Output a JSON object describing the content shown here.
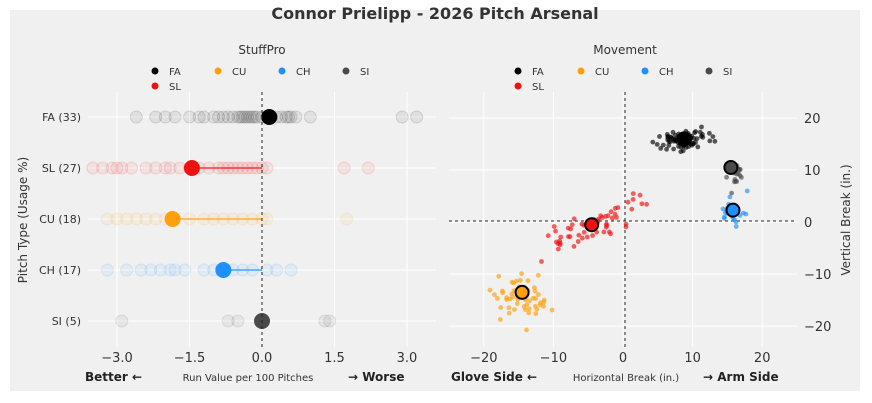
{
  "title": "Connor Prielipp - 2026 Pitch Arsenal",
  "chart_data": [
    {
      "type": "scatter",
      "subtitle": "StuffPro",
      "ylabel": "Pitch Type (Usage %)",
      "xlabel": "Run Value per 100 Pitches",
      "xlabel_left": "Better ←",
      "xlabel_right": "→ Worse",
      "xlim": [
        -3.6,
        3.6
      ],
      "xticks": [
        -3.0,
        -1.5,
        0.0,
        1.5,
        3.0
      ],
      "xtick_labels": [
        "−3.0",
        "−1.5",
        "0.0",
        "1.5",
        "3.0"
      ],
      "categories": [
        "FA (33)",
        "SL (27)",
        "CU (18)",
        "CH (17)",
        "SI (5)"
      ],
      "legend": [
        {
          "code": "FA",
          "color": "#000000"
        },
        {
          "code": "CU",
          "color": "#ff9f0a"
        },
        {
          "code": "CH",
          "color": "#1e90ff"
        },
        {
          "code": "SI",
          "color": "#4a4a4a"
        },
        {
          "code": "SL",
          "color": "#ef1010"
        }
      ],
      "series": [
        {
          "pitch": "FA",
          "color": "#000000",
          "mean": 0.15,
          "values": [
            -2.6,
            -2.2,
            -2.0,
            -1.8,
            -1.5,
            -1.3,
            -1.2,
            -1.0,
            -0.9,
            -0.8,
            -0.7,
            -0.6,
            -0.5,
            -0.45,
            -0.4,
            -0.35,
            -0.3,
            -0.25,
            -0.2,
            -0.15,
            -0.1,
            0.0,
            0.1,
            0.2,
            0.3,
            0.4,
            0.5,
            0.55,
            0.6,
            0.7,
            1.0,
            2.9,
            3.2
          ]
        },
        {
          "pitch": "SL",
          "color": "#ef1010",
          "mean": -1.45,
          "values": [
            -3.5,
            -3.3,
            -3.1,
            -3.0,
            -2.9,
            -2.7,
            -2.4,
            -2.2,
            -2.0,
            -1.9,
            -1.7,
            -1.5,
            -1.3,
            -1.1,
            -0.9,
            -0.8,
            -0.7,
            -0.6,
            -0.5,
            -0.4,
            -0.3,
            -0.2,
            -0.1,
            0.0,
            0.1,
            1.7,
            2.2
          ]
        },
        {
          "pitch": "CU",
          "color": "#ff9f0a",
          "mean": -1.85,
          "values": [
            -3.2,
            -3.0,
            -2.8,
            -2.6,
            -2.4,
            -2.2,
            -2.0,
            -1.8,
            -1.5,
            -1.2,
            -1.0,
            -0.8,
            -0.6,
            -0.4,
            -0.2,
            0.0,
            0.1,
            1.75
          ]
        },
        {
          "pitch": "CH",
          "color": "#1e90ff",
          "mean": -0.8,
          "values": [
            -3.2,
            -2.8,
            -2.5,
            -2.3,
            -2.1,
            -1.9,
            -1.8,
            -1.6,
            -1.2,
            -1.0,
            -0.8,
            -0.6,
            -0.4,
            -0.2,
            0.1,
            0.3,
            0.6
          ]
        },
        {
          "pitch": "SI",
          "color": "#4a4a4a",
          "mean": 0.0,
          "values": [
            -2.9,
            -0.7,
            -0.5,
            1.3,
            1.4
          ]
        }
      ]
    },
    {
      "type": "scatter",
      "subtitle": "Movement",
      "xlabel": "Horizontal Break (in.)",
      "xlabel_left": "Glove Side ←",
      "xlabel_right": "→ Arm Side",
      "ylabel": "Vertical Break (in.)",
      "xlim": [
        -25,
        25
      ],
      "ylim": [
        -24,
        25
      ],
      "xticks": [
        -20,
        -10,
        0,
        10,
        20
      ],
      "xtick_labels": [
        "−20",
        "−10",
        "0",
        "10",
        "20"
      ],
      "yticks": [
        20,
        10,
        0,
        -10,
        -20
      ],
      "ytick_labels": [
        "20",
        "10",
        "0",
        "−10",
        "−20"
      ],
      "legend": [
        {
          "code": "FA",
          "color": "#000000"
        },
        {
          "code": "CU",
          "color": "#ff9f0a"
        },
        {
          "code": "CH",
          "color": "#1e90ff"
        },
        {
          "code": "SI",
          "color": "#4a4a4a"
        },
        {
          "code": "SL",
          "color": "#ef1010"
        }
      ],
      "series": [
        {
          "pitch": "FA",
          "color": "#000000",
          "mean": [
            8.8,
            16.0
          ],
          "center": [
            8.8,
            16.0
          ],
          "spread": [
            3.2,
            1.6
          ],
          "n": 72
        },
        {
          "pitch": "SI",
          "color": "#4a4a4a",
          "mean": [
            15.5,
            10.5
          ],
          "center": [
            16.2,
            9.0
          ],
          "spread": [
            1.0,
            2.0
          ],
          "n": 16
        },
        {
          "pitch": "CH",
          "color": "#1e90ff",
          "mean": [
            15.8,
            2.3
          ],
          "center": [
            16.0,
            2.5
          ],
          "spread": [
            1.8,
            2.5
          ],
          "n": 26
        },
        {
          "pitch": "SL",
          "color": "#ef1010",
          "mean": [
            -4.5,
            -0.5
          ],
          "center": [
            -4.0,
            -0.5
          ],
          "spread": [
            5.5,
            3.0
          ],
          "n": 60,
          "trend": 0.55
        },
        {
          "pitch": "CU",
          "color": "#ff9f0a",
          "mean": [
            -14.5,
            -13.5
          ],
          "center": [
            -15.0,
            -14.0
          ],
          "spread": [
            3.5,
            4.0
          ],
          "n": 55,
          "trend": -0.2
        }
      ]
    }
  ]
}
